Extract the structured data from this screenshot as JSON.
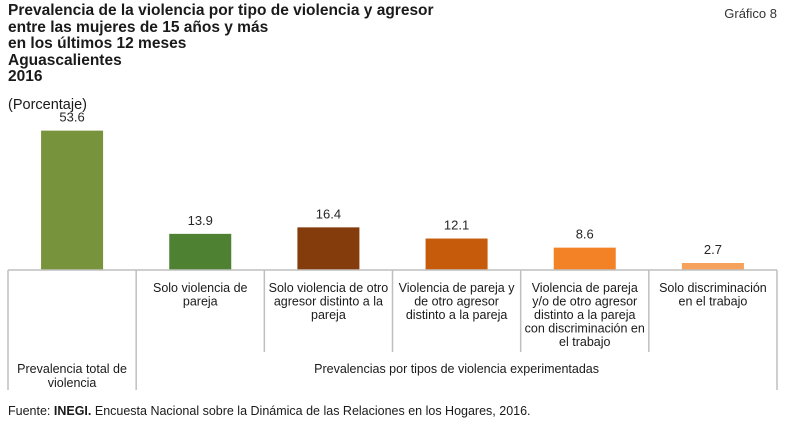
{
  "header": {
    "title_lines": [
      "Prevalencia de la violencia por tipo de violencia y agresor",
      "entre las mujeres de 15 años y más",
      "en los últimos 12 meses",
      "Aguascalientes",
      "2016"
    ],
    "subtitle": "(Porcentaje)",
    "graph_number": "Gráfico 8"
  },
  "chart_data": {
    "type": "bar",
    "title": "Prevalencia de la violencia por tipo de violencia y agresor entre las mujeres de 15 años y más en los últimos 12 meses, Aguascalientes 2016",
    "ylabel": "Porcentaje",
    "xlabel": "",
    "ylim": [
      0,
      60
    ],
    "grid": false,
    "legend": "none",
    "categories": [
      [
        "Prevalencia total de",
        "violencia"
      ],
      [
        "Solo violencia de",
        "pareja"
      ],
      [
        "Solo violencia de otro",
        "agresor distinto a la",
        "pareja"
      ],
      [
        "Violencia de pareja y",
        "de otro agresor",
        "distinto a la pareja"
      ],
      [
        "Violencia de pareja",
        "y/o de otro agresor",
        "distinto a la pareja",
        "con  discriminación en",
        "el trabajo"
      ],
      [
        "Solo discriminación",
        "en el trabajo"
      ]
    ],
    "values": [
      53.6,
      13.9,
      16.4,
      12.1,
      8.6,
      2.7
    ],
    "value_labels": [
      "53.6",
      "13.9",
      "16.4",
      "12.1",
      "8.6",
      "2.7"
    ],
    "colors": [
      "#77933c",
      "#4f8132",
      "#843c0c",
      "#c65b0b",
      "#f38227",
      "#f6a15c"
    ],
    "group_label": "Prevalencias por tipos de violencia experimentadas"
  },
  "footer": {
    "prefix": "Fuente: ",
    "source_bold": "INEGI.",
    "source_rest": " Encuesta Nacional sobre la Dinámica de las Relaciones en los Hogares, 2016."
  }
}
